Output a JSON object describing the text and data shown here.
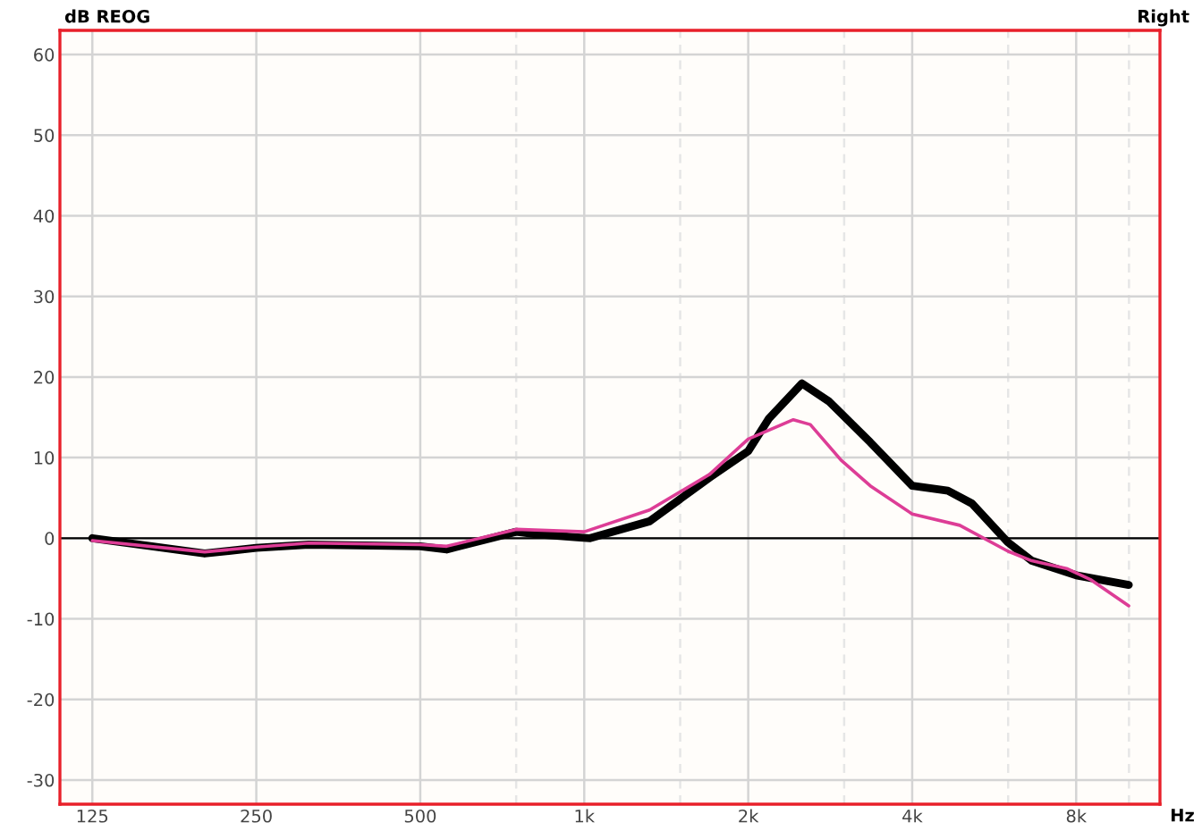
{
  "chart_data": {
    "type": "line",
    "title": "Right",
    "ylabel": "dB REOG",
    "xlabel": "Hz",
    "log": "x",
    "grid": true,
    "legend": false,
    "marker": "none",
    "line_style": "solid",
    "xlim": [
      109,
      11400
    ],
    "ylim": [
      -33,
      63
    ],
    "xticks": [
      {
        "value": 125,
        "label": "125"
      },
      {
        "value": 250,
        "label": "250"
      },
      {
        "value": 500,
        "label": "500"
      },
      {
        "value": 750,
        "label": null
      },
      {
        "value": 1000,
        "label": "1k"
      },
      {
        "value": 1500,
        "label": null
      },
      {
        "value": 2000,
        "label": "2k"
      },
      {
        "value": 3000,
        "label": null
      },
      {
        "value": 4000,
        "label": "4k"
      },
      {
        "value": 6000,
        "label": null
      },
      {
        "value": 8000,
        "label": "8k"
      },
      {
        "value": 10000,
        "label": null
      }
    ],
    "yticks": [
      -30,
      -20,
      -10,
      0,
      10,
      20,
      30,
      40,
      50,
      60
    ],
    "ref_lines": [
      {
        "axis": "y",
        "value": 0,
        "label": null,
        "color": "#000000"
      }
    ],
    "series": [
      {
        "color": "#000000",
        "x": [
          125,
          201,
          250,
          312,
          500,
          559,
          750,
          816,
          971,
          1025,
          1318,
          1697,
          2000,
          2180,
          2510,
          2810,
          3350,
          4000,
          4650,
          5150,
          5990,
          6630,
          8000,
          9990
        ],
        "values": [
          0,
          -1.9,
          -1.2,
          -0.8,
          -1.0,
          -1.4,
          0.8,
          0.5,
          0.1,
          0.0,
          2.1,
          7.5,
          10.8,
          14.8,
          19.2,
          17.0,
          11.9,
          6.5,
          5.9,
          4.3,
          -0.5,
          -2.8,
          -4.6,
          -5.8
        ]
      },
      {
        "color": "#dd3d96",
        "x": [
          125,
          201,
          250,
          312,
          500,
          559,
          750,
          1000,
          1318,
          1697,
          2000,
          2420,
          2600,
          2960,
          3350,
          4000,
          4890,
          5990,
          6630,
          7710,
          8530,
          9990
        ],
        "values": [
          -0.3,
          -1.7,
          -1.1,
          -0.6,
          -0.8,
          -1.0,
          1.1,
          0.8,
          3.5,
          7.9,
          12.3,
          14.7,
          14.1,
          9.7,
          6.5,
          3.0,
          1.6,
          -1.6,
          -2.8,
          -3.8,
          -5.2,
          -8.4
        ]
      }
    ]
  }
}
